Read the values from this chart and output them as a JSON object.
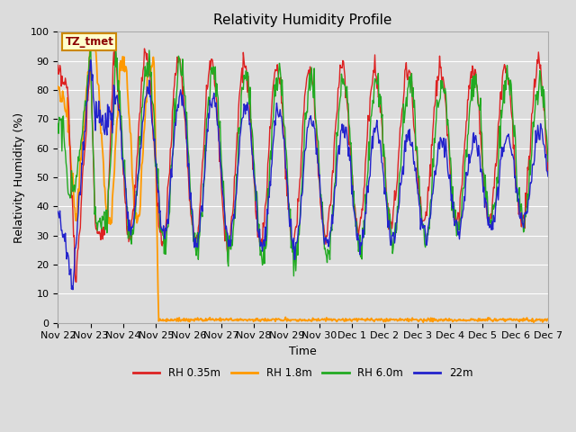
{
  "title": "Relativity Humidity Profile",
  "xlabel": "Time",
  "ylabel": "Relativity Humidity (%)",
  "ylim": [
    0,
    100
  ],
  "background_color": "#dcdcdc",
  "plot_bg_color": "#dcdcdc",
  "annotation_text": "TZ_tmet",
  "annotation_bg": "#ffffcc",
  "annotation_border": "#cc8800",
  "annotation_text_color": "#8b0000",
  "colors": {
    "RH 0.35m": "#dd2222",
    "RH 1.8m": "#ff9900",
    "RH 6.0m": "#22aa22",
    "22m": "#2222cc"
  },
  "legend_labels": [
    "RH 0.35m",
    "RH 1.8m",
    "RH 6.0m",
    "22m"
  ],
  "tick_labels": [
    "Nov 22",
    "Nov 23",
    "Nov 24",
    "Nov 25",
    "Nov 26",
    "Nov 27",
    "Nov 28",
    "Nov 29",
    "Nov 30",
    "Dec 1",
    "Dec 2",
    "Dec 3",
    "Dec 4",
    "Dec 5",
    "Dec 6",
    "Dec 7"
  ],
  "grid_color": "#ffffff",
  "title_fontsize": 11,
  "axis_fontsize": 9,
  "tick_fontsize": 8
}
